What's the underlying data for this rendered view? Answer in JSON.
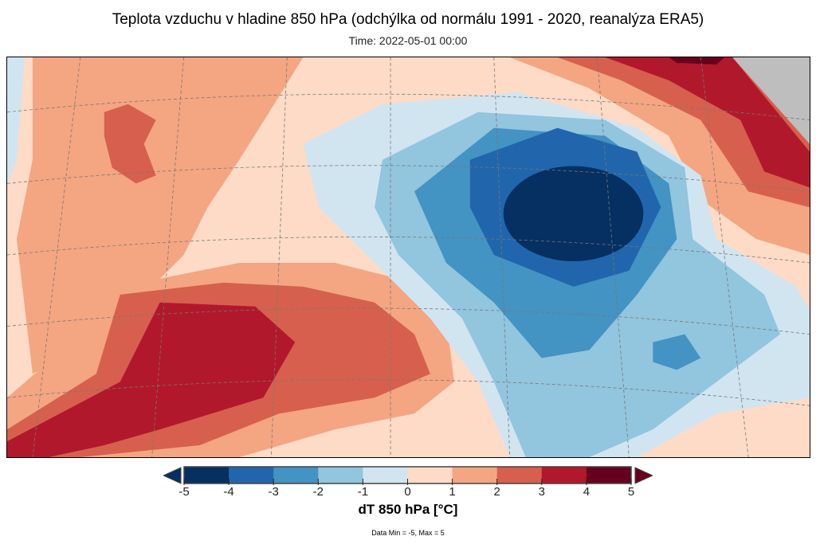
{
  "title": "Teplota vzduchu v hladine 850 hPa (odchýlka od normálu 1991 - 2020, reanalýza ERA5)",
  "subtitle": "Time: 2022-05-01 00:00",
  "colorbar": {
    "label": "dT 850 hPa [°C]",
    "ticks": [
      "-5",
      "-4",
      "-3",
      "-2",
      "-1",
      "0",
      "1",
      "2",
      "3",
      "4",
      "5"
    ],
    "colors": [
      "#053061",
      "#2166ac",
      "#4393c3",
      "#92c5de",
      "#d1e5f0",
      "#fddbc7",
      "#f4a582",
      "#d6604d",
      "#b2182b",
      "#67001f"
    ],
    "range": [
      -5,
      5
    ]
  },
  "footer": "Data Min = -5, Max = 5",
  "nodata_color": "#bebebe"
}
